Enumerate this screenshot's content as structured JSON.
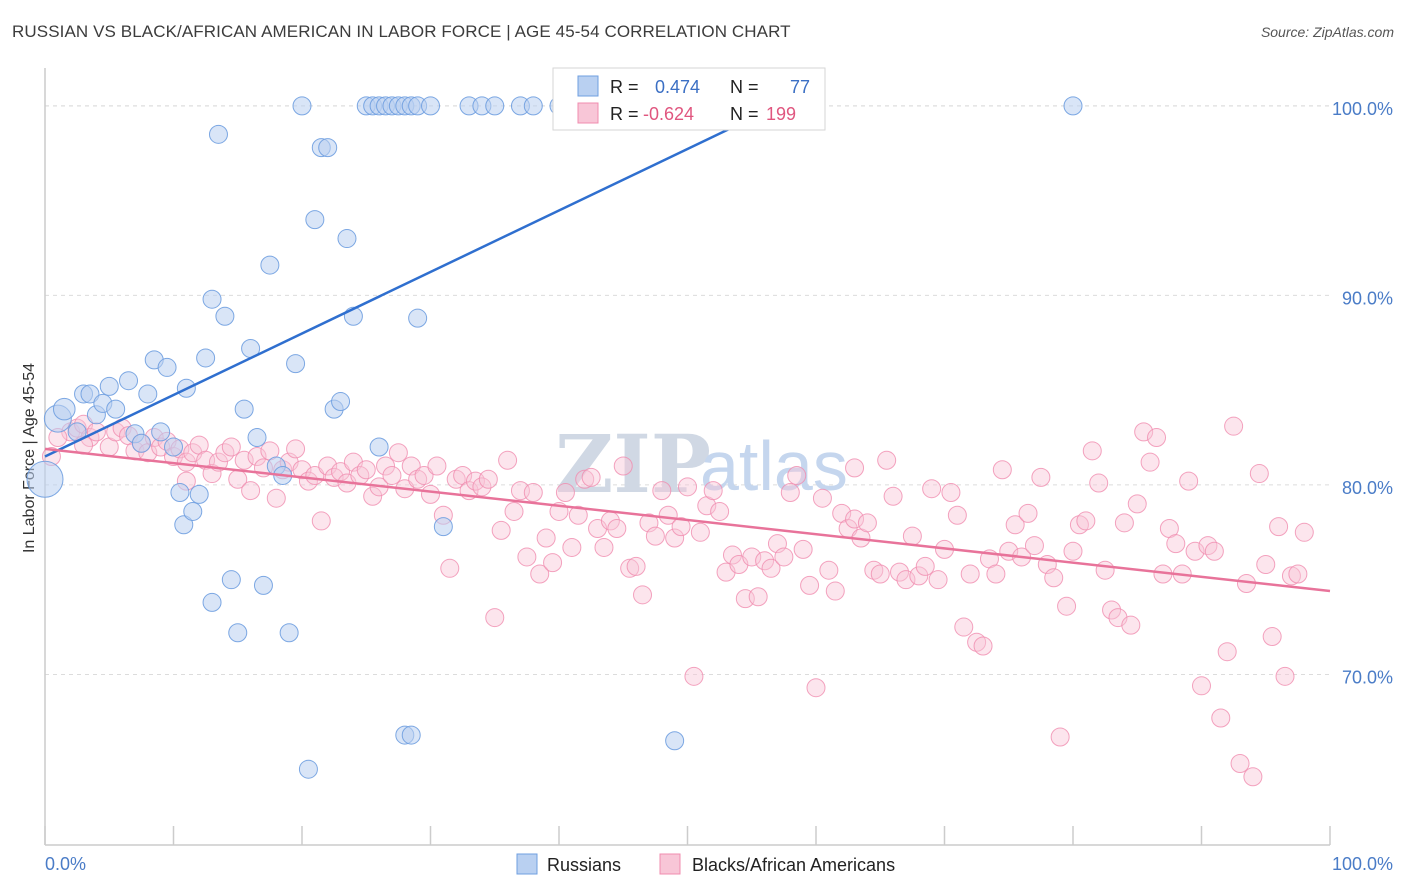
{
  "title": "RUSSIAN VS BLACK/AFRICAN AMERICAN IN LABOR FORCE | AGE 45-54 CORRELATION CHART",
  "source": "Source: ZipAtlas.com",
  "watermark": {
    "part1": "ZIP",
    "part2": "atlas"
  },
  "colors": {
    "blue": "#6f9fe0",
    "blue_fill": "#b9d0f1",
    "blue_line": "#2f6fcf",
    "pink": "#f08caf",
    "pink_fill": "#f8c6d7",
    "pink_line": "#e8739a",
    "grid": "#dcdcdc",
    "axis_text": "#4a7cc7"
  },
  "legend": {
    "r_label": "R =",
    "n_label": "N =",
    "series": [
      {
        "r": "0.474",
        "n": "77"
      },
      {
        "r": "-0.624",
        "n": "199"
      }
    ]
  },
  "bottom_legend": [
    "Russians",
    "Blacks/African Americans"
  ],
  "chart_data": {
    "type": "scatter",
    "title": "RUSSIAN VS BLACK/AFRICAN AMERICAN IN LABOR FORCE | AGE 45-54 CORRELATION CHART",
    "xlabel": "",
    "ylabel": "In Labor Force | Age 45-54",
    "xlim": [
      0,
      100
    ],
    "ylim": [
      61,
      102
    ],
    "x_tick_labels": [
      "0.0%",
      "100.0%"
    ],
    "y_ticks": [
      70,
      80,
      90,
      100
    ],
    "y_tick_labels": [
      "70.0%",
      "80.0%",
      "90.0%",
      "100.0%"
    ],
    "grid": true,
    "legend_position": "top-center",
    "series": [
      {
        "name": "Russians",
        "r": 0.474,
        "n": 77,
        "trend": {
          "x": [
            0,
            57
          ],
          "y": [
            81.5,
            100
          ]
        },
        "points": [
          [
            0,
            80.3,
            2
          ],
          [
            1,
            83.5,
            1.5
          ],
          [
            1.5,
            84,
            1.2
          ],
          [
            2.5,
            82.8,
            1
          ],
          [
            3,
            84.8,
            1
          ],
          [
            3.5,
            84.8,
            1
          ],
          [
            4,
            83.7,
            1
          ],
          [
            4.5,
            84.3,
            1
          ],
          [
            5,
            85.2,
            1
          ],
          [
            5.5,
            84,
            1
          ],
          [
            6.5,
            85.5,
            1
          ],
          [
            7,
            82.7,
            1
          ],
          [
            7.5,
            82.2,
            1
          ],
          [
            8,
            84.8,
            1
          ],
          [
            8.5,
            86.6,
            1
          ],
          [
            9,
            82.8,
            1
          ],
          [
            9.5,
            86.2,
            1
          ],
          [
            10,
            82,
            1
          ],
          [
            10.5,
            79.6,
            1
          ],
          [
            10.8,
            77.9,
            1
          ],
          [
            11,
            85.1,
            1
          ],
          [
            11.5,
            78.6,
            1
          ],
          [
            12,
            79.5,
            1
          ],
          [
            12.5,
            86.7,
            1
          ],
          [
            13,
            73.8,
            1
          ],
          [
            13.5,
            98.5,
            1
          ],
          [
            13,
            89.8,
            1
          ],
          [
            14,
            88.9,
            1
          ],
          [
            14.5,
            75,
            1
          ],
          [
            15,
            72.2,
            1
          ],
          [
            15.5,
            84,
            1
          ],
          [
            16,
            87.2,
            1
          ],
          [
            16.5,
            82.5,
            1
          ],
          [
            17,
            74.7,
            1
          ],
          [
            17.5,
            91.6,
            1
          ],
          [
            18,
            81,
            1
          ],
          [
            18.5,
            80.5,
            1
          ],
          [
            19,
            72.2,
            1
          ],
          [
            19.5,
            86.4,
            1
          ],
          [
            20,
            100,
            1
          ],
          [
            20.5,
            65,
            1
          ],
          [
            21,
            94,
            1
          ],
          [
            21.5,
            97.8,
            1
          ],
          [
            22,
            97.8,
            1
          ],
          [
            22.5,
            84,
            1
          ],
          [
            23,
            84.4,
            1
          ],
          [
            23.5,
            93,
            1
          ],
          [
            24,
            88.9,
            1
          ],
          [
            25,
            100,
            1
          ],
          [
            25.5,
            100,
            1
          ],
          [
            26,
            100,
            1
          ],
          [
            26.5,
            100,
            1
          ],
          [
            27,
            100,
            1
          ],
          [
            27.5,
            100,
            1
          ],
          [
            28,
            100,
            1
          ],
          [
            28.5,
            100,
            1
          ],
          [
            29,
            100,
            1
          ],
          [
            30,
            100,
            1
          ],
          [
            26,
            82,
            1
          ],
          [
            29,
            88.8,
            1
          ],
          [
            28,
            66.8,
            1
          ],
          [
            28.5,
            66.8,
            1
          ],
          [
            31,
            77.8,
            1
          ],
          [
            33,
            100,
            1
          ],
          [
            34,
            100,
            1
          ],
          [
            35,
            100,
            1
          ],
          [
            37,
            100,
            1
          ],
          [
            38,
            100,
            1
          ],
          [
            40,
            100,
            1
          ],
          [
            42,
            100,
            1
          ],
          [
            44,
            100,
            1
          ],
          [
            47,
            100,
            1
          ],
          [
            49,
            66.5,
            1
          ],
          [
            52,
            100,
            1
          ],
          [
            53,
            100,
            1
          ],
          [
            55,
            100,
            1
          ],
          [
            80,
            100,
            1
          ]
        ]
      },
      {
        "name": "Blacks/African Americans",
        "r": -0.624,
        "n": 199,
        "trend": {
          "x": [
            0,
            100
          ],
          "y": [
            81.9,
            74.4
          ]
        },
        "points": [
          [
            0.5,
            81.5
          ],
          [
            2,
            82.8
          ],
          [
            2.5,
            83
          ],
          [
            3,
            83.2
          ],
          [
            3.5,
            82.5
          ],
          [
            4,
            82.8
          ],
          [
            5,
            82
          ],
          [
            5.5,
            82.8
          ],
          [
            6,
            83
          ],
          [
            6.5,
            82.6
          ],
          [
            7,
            81.8
          ],
          [
            7.5,
            82.2
          ],
          [
            8,
            81.7
          ],
          [
            8.5,
            82.5
          ],
          [
            9,
            82
          ],
          [
            9.5,
            82.3
          ],
          [
            10,
            81.5
          ],
          [
            10.5,
            81.9
          ],
          [
            11,
            81.2
          ],
          [
            11.5,
            81.7
          ],
          [
            12,
            82.1
          ],
          [
            12.5,
            81.3
          ],
          [
            13,
            80.6
          ],
          [
            13.5,
            81.2
          ],
          [
            14,
            81.7
          ],
          [
            14.5,
            82
          ],
          [
            15,
            80.3
          ],
          [
            15.5,
            81.3
          ],
          [
            16,
            79.7
          ],
          [
            16.5,
            81.5
          ],
          [
            17,
            80.9
          ],
          [
            17.5,
            81.8
          ],
          [
            18,
            79.3
          ],
          [
            18.5,
            80.8
          ],
          [
            19,
            81.2
          ],
          [
            19.5,
            81.9
          ],
          [
            20,
            80.8
          ],
          [
            20.5,
            80.2
          ],
          [
            21,
            80.5
          ],
          [
            21.5,
            78.1
          ],
          [
            22,
            81
          ],
          [
            22.5,
            80.4
          ],
          [
            23,
            80.7
          ],
          [
            23.5,
            80.1
          ],
          [
            24,
            81.2
          ],
          [
            24.5,
            80.5
          ],
          [
            25,
            80.8
          ],
          [
            25.5,
            79.4
          ],
          [
            26,
            79.9
          ],
          [
            26.5,
            81
          ],
          [
            27,
            80.5
          ],
          [
            27.5,
            81.7
          ],
          [
            28,
            79.8
          ],
          [
            28.5,
            81
          ],
          [
            29,
            80.3
          ],
          [
            29.5,
            80.5
          ],
          [
            30,
            79.5
          ],
          [
            30.5,
            81
          ],
          [
            31,
            78.4
          ],
          [
            31.5,
            75.6
          ],
          [
            32,
            80.3
          ],
          [
            32.5,
            80.5
          ],
          [
            33,
            79.7
          ],
          [
            33.5,
            80.2
          ],
          [
            34,
            79.9
          ],
          [
            34.5,
            80.3
          ],
          [
            35,
            73
          ],
          [
            35.5,
            77.6
          ],
          [
            36,
            81.3
          ],
          [
            36.5,
            78.6
          ],
          [
            37,
            79.7
          ],
          [
            37.5,
            76.2
          ],
          [
            38,
            79.6
          ],
          [
            38.5,
            75.3
          ],
          [
            39,
            77.2
          ],
          [
            39.5,
            75.9
          ],
          [
            40,
            78.6
          ],
          [
            40.5,
            79.6
          ],
          [
            41,
            76.7
          ],
          [
            41.5,
            78.4
          ],
          [
            42,
            80.3
          ],
          [
            42.5,
            80.4
          ],
          [
            43,
            77.7
          ],
          [
            43.5,
            76.7
          ],
          [
            44,
            78.1
          ],
          [
            44.5,
            77.7
          ],
          [
            45,
            81
          ],
          [
            45.5,
            75.6
          ],
          [
            46,
            75.7
          ],
          [
            46.5,
            74.2
          ],
          [
            47,
            78
          ],
          [
            47.5,
            77.3
          ],
          [
            48,
            79.7
          ],
          [
            48.5,
            78.4
          ],
          [
            49,
            77.2
          ],
          [
            49.5,
            77.8
          ],
          [
            50,
            79.9
          ],
          [
            50.5,
            69.9
          ],
          [
            51,
            77.5
          ],
          [
            51.5,
            78.9
          ],
          [
            52,
            79.7
          ],
          [
            52.5,
            78.6
          ],
          [
            53,
            75.4
          ],
          [
            53.5,
            76.3
          ],
          [
            54,
            75.8
          ],
          [
            54.5,
            74
          ],
          [
            55,
            76.2
          ],
          [
            55.5,
            74.1
          ],
          [
            56,
            76
          ],
          [
            56.5,
            75.6
          ],
          [
            57,
            76.9
          ],
          [
            57.5,
            76.2
          ],
          [
            58,
            79.6
          ],
          [
            58.5,
            80.5
          ],
          [
            59,
            76.6
          ],
          [
            59.5,
            74.7
          ],
          [
            60,
            69.3
          ],
          [
            60.5,
            79.3
          ],
          [
            61,
            75.5
          ],
          [
            61.5,
            74.4
          ],
          [
            62,
            78.5
          ],
          [
            62.5,
            77.7
          ],
          [
            63,
            78.2
          ],
          [
            63.5,
            77.2
          ],
          [
            64,
            78
          ],
          [
            64.5,
            75.5
          ],
          [
            65,
            75.3
          ],
          [
            65.5,
            81.3
          ],
          [
            66,
            79.4
          ],
          [
            66.5,
            75.4
          ],
          [
            67,
            75
          ],
          [
            67.5,
            77.3
          ],
          [
            68,
            75.2
          ],
          [
            68.5,
            75.7
          ],
          [
            69,
            79.8
          ],
          [
            69.5,
            75
          ],
          [
            70,
            76.6
          ],
          [
            70.5,
            79.6
          ],
          [
            71,
            78.4
          ],
          [
            71.5,
            72.5
          ],
          [
            72,
            75.3
          ],
          [
            72.5,
            71.7
          ],
          [
            73,
            71.5
          ],
          [
            73.5,
            76.1
          ],
          [
            74,
            75.3
          ],
          [
            74.5,
            80.8
          ],
          [
            75,
            76.5
          ],
          [
            75.5,
            77.9
          ],
          [
            76,
            76.2
          ],
          [
            76.5,
            78.5
          ],
          [
            77,
            76.8
          ],
          [
            77.5,
            80.4
          ],
          [
            78,
            75.8
          ],
          [
            78.5,
            75.1
          ],
          [
            79,
            66.7
          ],
          [
            79.5,
            73.6
          ],
          [
            80,
            76.5
          ],
          [
            80.5,
            77.9
          ],
          [
            81,
            78.1
          ],
          [
            81.5,
            81.8
          ],
          [
            82,
            80.1
          ],
          [
            82.5,
            75.5
          ],
          [
            83,
            73.4
          ],
          [
            83.5,
            73
          ],
          [
            84,
            78
          ],
          [
            84.5,
            72.6
          ],
          [
            85,
            79
          ],
          [
            85.5,
            82.8
          ],
          [
            86,
            81.2
          ],
          [
            86.5,
            82.5
          ],
          [
            87,
            75.3
          ],
          [
            87.5,
            77.7
          ],
          [
            88,
            76.9
          ],
          [
            88.5,
            75.3
          ],
          [
            89,
            80.2
          ],
          [
            89.5,
            76.5
          ],
          [
            90,
            69.4
          ],
          [
            90.5,
            76.8
          ],
          [
            91,
            76.5
          ],
          [
            91.5,
            67.7
          ],
          [
            92,
            71.2
          ],
          [
            92.5,
            83.1
          ],
          [
            93,
            65.3
          ],
          [
            93.5,
            74.8
          ],
          [
            94,
            64.6
          ],
          [
            94.5,
            80.6
          ],
          [
            95,
            75.8
          ],
          [
            95.5,
            72
          ],
          [
            96,
            77.8
          ],
          [
            96.5,
            69.9
          ],
          [
            97,
            75.2
          ],
          [
            97.5,
            75.3
          ],
          [
            98,
            77.5
          ],
          [
            1,
            82.5
          ],
          [
            3,
            82.1
          ],
          [
            11,
            80.2
          ],
          [
            63,
            80.9
          ]
        ]
      }
    ]
  }
}
